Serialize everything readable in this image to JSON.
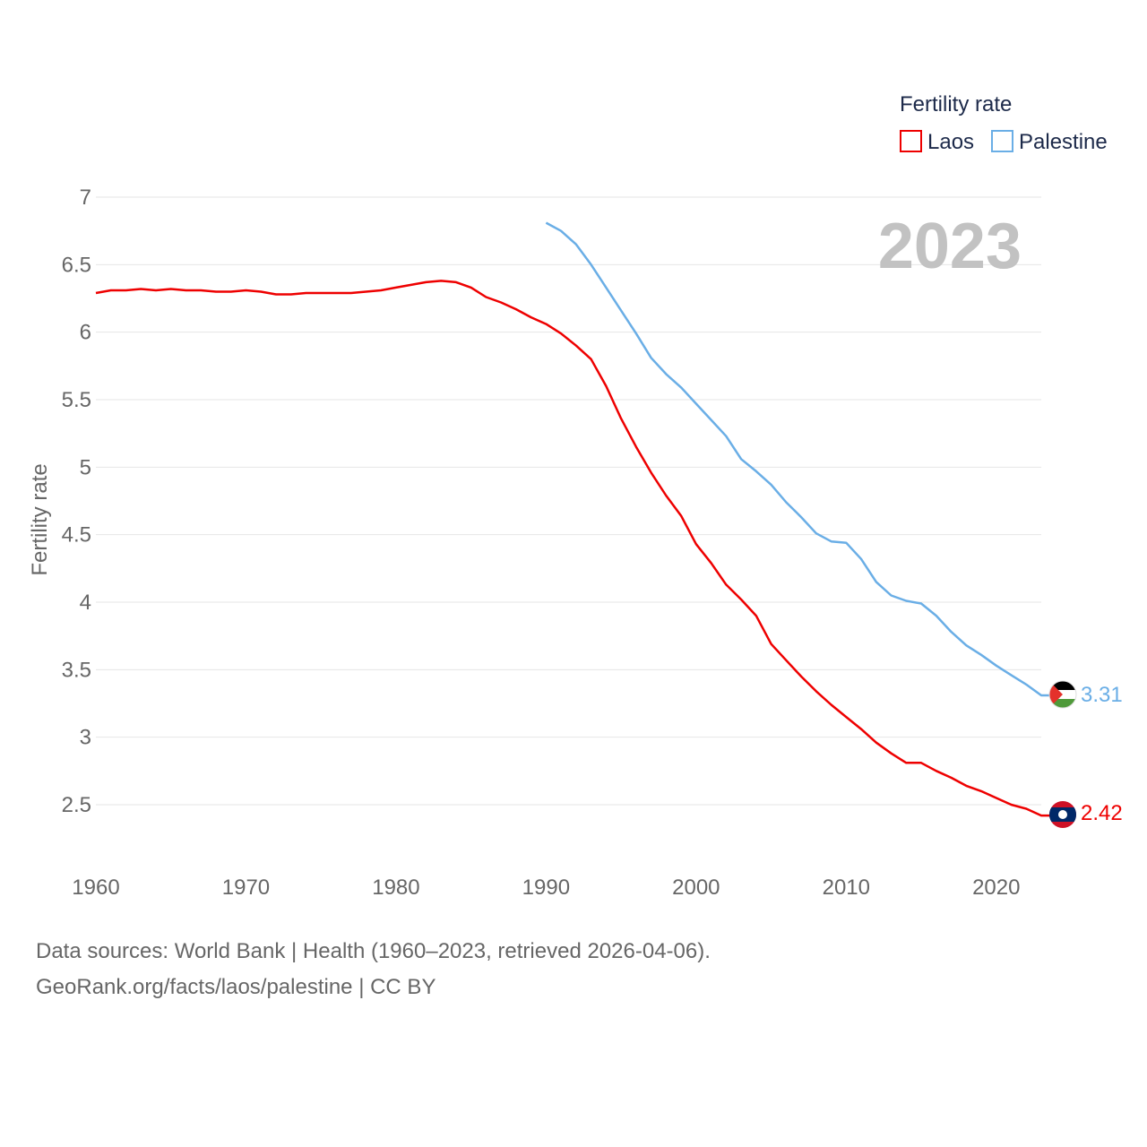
{
  "chart_data": {
    "type": "line",
    "title": "",
    "ylabel": "Fertility rate",
    "xlabel": "",
    "xlim": [
      1960,
      2023
    ],
    "ylim": [
      2.0,
      7.0
    ],
    "x_ticks": [
      1960,
      1970,
      1980,
      1990,
      2000,
      2010,
      2020
    ],
    "y_ticks": [
      2.5,
      3,
      3.5,
      4,
      4.5,
      5,
      5.5,
      6,
      6.5,
      7
    ],
    "grid": true,
    "legend": {
      "title": "Fertility rate",
      "placement": "top-right",
      "entries": [
        "Laos",
        "Palestine"
      ]
    },
    "year_label": "2023",
    "series": [
      {
        "name": "Laos",
        "color": "#ee0000",
        "end_label": "2.42",
        "flag": "laos-flag",
        "x": [
          1960,
          1961,
          1962,
          1963,
          1964,
          1965,
          1966,
          1967,
          1968,
          1969,
          1970,
          1971,
          1972,
          1973,
          1974,
          1975,
          1976,
          1977,
          1978,
          1979,
          1980,
          1981,
          1982,
          1983,
          1984,
          1985,
          1986,
          1987,
          1988,
          1989,
          1990,
          1991,
          1992,
          1993,
          1994,
          1995,
          1996,
          1997,
          1998,
          1999,
          2000,
          2001,
          2002,
          2003,
          2004,
          2005,
          2006,
          2007,
          2008,
          2009,
          2010,
          2011,
          2012,
          2013,
          2014,
          2015,
          2016,
          2017,
          2018,
          2019,
          2020,
          2021,
          2022,
          2023
        ],
        "values": [
          6.29,
          6.31,
          6.31,
          6.32,
          6.31,
          6.32,
          6.31,
          6.31,
          6.3,
          6.3,
          6.31,
          6.3,
          6.28,
          6.28,
          6.29,
          6.29,
          6.29,
          6.29,
          6.3,
          6.31,
          6.33,
          6.35,
          6.37,
          6.38,
          6.37,
          6.33,
          6.26,
          6.22,
          6.17,
          6.11,
          6.06,
          5.99,
          5.9,
          5.8,
          5.6,
          5.36,
          5.15,
          4.96,
          4.79,
          4.64,
          4.43,
          4.29,
          4.13,
          4.02,
          3.9,
          3.69,
          3.57,
          3.45,
          3.34,
          3.24,
          3.15,
          3.06,
          2.96,
          2.88,
          2.81,
          2.81,
          2.75,
          2.7,
          2.64,
          2.6,
          2.55,
          2.5,
          2.47,
          2.42
        ]
      },
      {
        "name": "Palestine",
        "color": "#6aaee6",
        "end_label": "3.31",
        "flag": "palestine-flag",
        "x": [
          1990,
          1991,
          1992,
          1993,
          1994,
          1995,
          1996,
          1997,
          1998,
          1999,
          2000,
          2001,
          2002,
          2003,
          2004,
          2005,
          2006,
          2007,
          2008,
          2009,
          2010,
          2011,
          2012,
          2013,
          2014,
          2015,
          2016,
          2017,
          2018,
          2019,
          2020,
          2021,
          2022,
          2023
        ],
        "values": [
          6.81,
          6.75,
          6.65,
          6.5,
          6.33,
          6.16,
          5.99,
          5.81,
          5.69,
          5.59,
          5.47,
          5.35,
          5.23,
          5.06,
          4.97,
          4.87,
          4.74,
          4.63,
          4.51,
          4.45,
          4.44,
          4.32,
          4.15,
          4.05,
          4.01,
          3.99,
          3.9,
          3.78,
          3.68,
          3.61,
          3.53,
          3.46,
          3.39,
          3.31
        ]
      }
    ]
  },
  "footer": {
    "line1": "Data sources: World Bank | Health (1960–2023, retrieved 2026-04-06).",
    "line2": "GeoRank.org/facts/laos/palestine | CC BY"
  }
}
